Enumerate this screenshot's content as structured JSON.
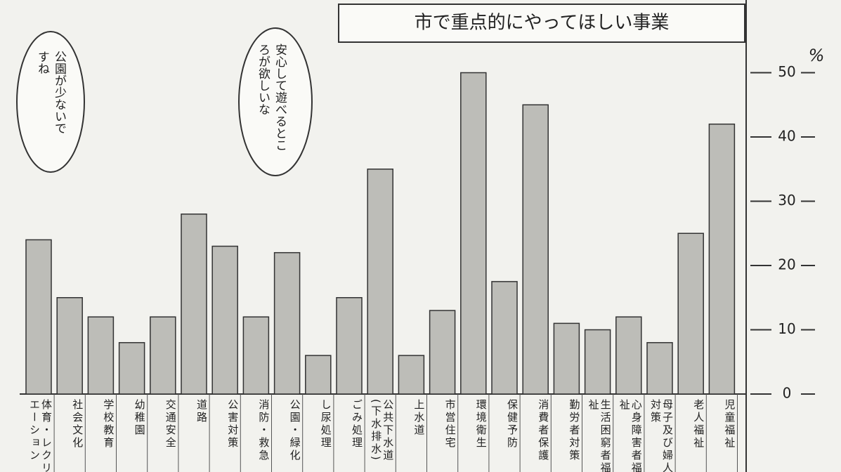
{
  "chart_data": {
    "type": "bar",
    "title": "市で重点的にやってほしい事業",
    "y_label": "%",
    "annotations": [
      "公園が少ないですね",
      "安心して遊べるところが欲しいな"
    ],
    "categories": [
      "体育・レクリエーション",
      "社会文化",
      "学校教育",
      "幼稚園",
      "交通安全",
      "道路",
      "公害対策",
      "消防・救急",
      "公園・緑化",
      "し尿処理",
      "ごみ処理",
      "公共下水道(下水排水)",
      "上水道",
      "市営住宅",
      "環境衛生",
      "保健予防",
      "消費者保護",
      "勤労者対策",
      "生活困窮者福祉",
      "心身障害者福祉",
      "母子及び婦人対策",
      "老人福祉",
      "児童福祉"
    ],
    "values": [
      24,
      15,
      12,
      8,
      12,
      28,
      23,
      12,
      22,
      6,
      15,
      35,
      6,
      13,
      50,
      17.5,
      45,
      11,
      10,
      12,
      8,
      25,
      42
    ],
    "color": "#bdbdb8",
    "ylim": [
      0,
      60
    ],
    "yticks": [
      0,
      10,
      20,
      30,
      40,
      50
    ]
  }
}
